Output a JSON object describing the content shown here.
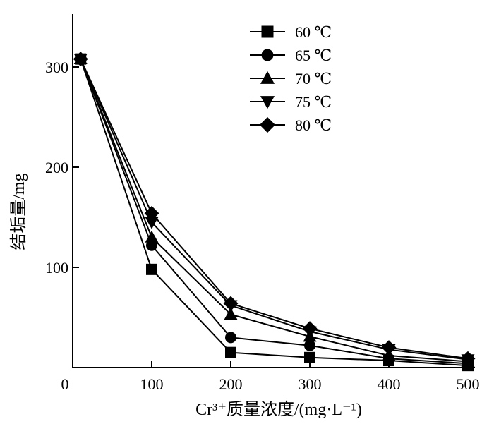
{
  "chart_data": {
    "type": "line",
    "title": "",
    "xlabel": "Cr³⁺质量浓度/(mg·L⁻¹)",
    "ylabel": "结垢量/mg",
    "xlim": [
      0,
      500
    ],
    "ylim": [
      0,
      350
    ],
    "x_ticks": [
      0,
      100,
      200,
      300,
      400,
      500
    ],
    "y_ticks": [
      100,
      200,
      300
    ],
    "x_tick_labels": [
      "0",
      "100",
      "200",
      "300",
      "400",
      "500"
    ],
    "y_tick_labels": [
      "100",
      "200",
      "300"
    ],
    "x": [
      10,
      100,
      200,
      300,
      400,
      500
    ],
    "legend_position": "top-right",
    "grid": false,
    "series": [
      {
        "name": "60 ℃",
        "marker": "square",
        "values": [
          308,
          98,
          15,
          10,
          7,
          2
        ]
      },
      {
        "name": "65 ℃",
        "marker": "circle",
        "values": [
          308,
          122,
          30,
          22,
          9,
          4
        ]
      },
      {
        "name": "70 ℃",
        "marker": "triangle-up",
        "values": [
          308,
          130,
          53,
          31,
          12,
          6
        ]
      },
      {
        "name": "75 ℃",
        "marker": "triangle-down",
        "values": [
          308,
          145,
          62,
          36,
          18,
          8
        ]
      },
      {
        "name": "80 ℃",
        "marker": "diamond",
        "values": [
          308,
          154,
          64,
          39,
          20,
          9
        ]
      }
    ],
    "color": "#000000"
  }
}
